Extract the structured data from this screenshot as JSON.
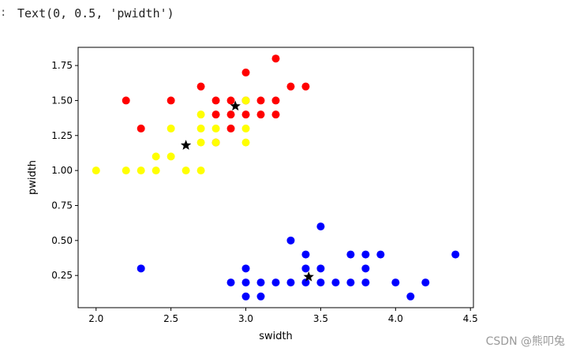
{
  "output": {
    "prompt": ":",
    "text": "Text(0, 0.5, 'pwidth')"
  },
  "watermark": "CSDN @熊叩兔",
  "chart_data": {
    "type": "scatter",
    "xlabel": "swidth",
    "ylabel": "pwidth",
    "xlim": [
      1.88,
      4.52
    ],
    "ylim": [
      0.02,
      1.88
    ],
    "xticks": [
      "2.0",
      "2.5",
      "3.0",
      "3.5",
      "4.0",
      "4.5"
    ],
    "yticks": [
      "0.25",
      "0.50",
      "0.75",
      "1.00",
      "1.25",
      "1.50",
      "1.75"
    ],
    "grid": false,
    "series": [
      {
        "color": "#ff0000",
        "points": [
          [
            3.2,
            1.8
          ],
          [
            3.0,
            1.7
          ],
          [
            2.7,
            1.6
          ],
          [
            3.3,
            1.6
          ],
          [
            3.4,
            1.6
          ],
          [
            2.2,
            1.5
          ],
          [
            2.5,
            1.5
          ],
          [
            2.8,
            1.5
          ],
          [
            2.9,
            1.5
          ],
          [
            3.0,
            1.5
          ],
          [
            3.1,
            1.5
          ],
          [
            3.2,
            1.5
          ],
          [
            2.8,
            1.4
          ],
          [
            2.9,
            1.4
          ],
          [
            3.0,
            1.4
          ],
          [
            3.1,
            1.4
          ],
          [
            3.2,
            1.4
          ],
          [
            2.3,
            1.3
          ],
          [
            2.9,
            1.3
          ],
          [
            2.8,
            1.2
          ]
        ]
      },
      {
        "color": "#ffff00",
        "points": [
          [
            2.0,
            1.0
          ],
          [
            2.2,
            1.0
          ],
          [
            2.3,
            1.0
          ],
          [
            2.4,
            1.0
          ],
          [
            2.6,
            1.0
          ],
          [
            2.7,
            1.0
          ],
          [
            2.4,
            1.1
          ],
          [
            2.5,
            1.1
          ],
          [
            2.7,
            1.2
          ],
          [
            2.8,
            1.2
          ],
          [
            3.0,
            1.2
          ],
          [
            2.5,
            1.3
          ],
          [
            2.7,
            1.3
          ],
          [
            2.8,
            1.3
          ],
          [
            3.0,
            1.3
          ],
          [
            2.7,
            1.4
          ],
          [
            3.0,
            1.5
          ]
        ]
      },
      {
        "color": "#0000ff",
        "points": [
          [
            2.3,
            0.3
          ],
          [
            3.0,
            0.3
          ],
          [
            3.4,
            0.3
          ],
          [
            3.5,
            0.3
          ],
          [
            3.8,
            0.3
          ],
          [
            2.9,
            0.2
          ],
          [
            3.0,
            0.2
          ],
          [
            3.1,
            0.2
          ],
          [
            3.2,
            0.2
          ],
          [
            3.3,
            0.2
          ],
          [
            3.4,
            0.2
          ],
          [
            3.5,
            0.2
          ],
          [
            3.6,
            0.2
          ],
          [
            3.7,
            0.2
          ],
          [
            3.8,
            0.2
          ],
          [
            4.0,
            0.2
          ],
          [
            4.2,
            0.2
          ],
          [
            3.0,
            0.1
          ],
          [
            3.1,
            0.1
          ],
          [
            4.1,
            0.1
          ],
          [
            3.3,
            0.5
          ],
          [
            3.5,
            0.6
          ],
          [
            3.4,
            0.4
          ],
          [
            3.7,
            0.4
          ],
          [
            3.8,
            0.4
          ],
          [
            3.9,
            0.4
          ],
          [
            4.4,
            0.4
          ]
        ]
      }
    ],
    "centroids": {
      "color": "#000000",
      "marker": "star",
      "points": [
        [
          2.93,
          1.46
        ],
        [
          2.6,
          1.18
        ],
        [
          3.42,
          0.24
        ]
      ]
    }
  }
}
